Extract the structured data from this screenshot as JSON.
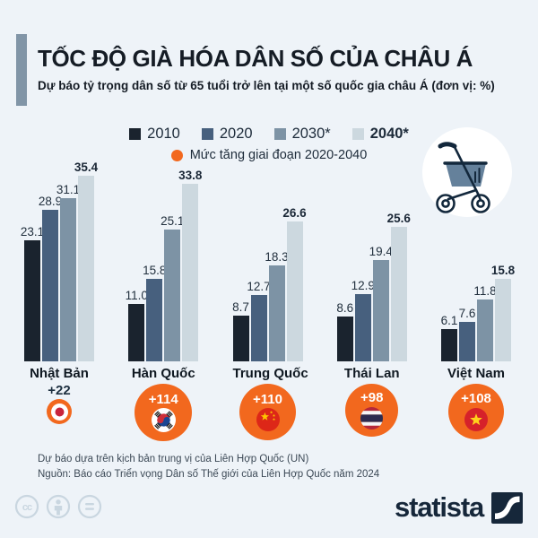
{
  "header": {
    "title": "TỐC ĐỘ GIÀ HÓA DÂN SỐ CỦA CHÂU Á",
    "subtitle": "Dự báo tỷ trọng dân số từ 65 tuổi trở lên tại một số quốc gia châu Á (đơn vị: %)"
  },
  "legend": {
    "increase_label": "Mức tăng giai đoạn 2020-2040"
  },
  "chart_data": {
    "type": "bar",
    "title": "Tốc độ già hóa dân số của châu Á",
    "unit": "%",
    "ylim": [
      0,
      36
    ],
    "grid": false,
    "legend_position": "top",
    "value_labels": true,
    "categories": [
      "Nhật Bản",
      "Hàn Quốc",
      "Trung Quốc",
      "Thái Lan",
      "Việt Nam"
    ],
    "series": [
      {
        "name": "2010",
        "color": "#1a232e",
        "bold": false,
        "values": [
          23.1,
          11.0,
          8.7,
          8.6,
          6.1
        ]
      },
      {
        "name": "2020",
        "color": "#47607e",
        "bold": false,
        "values": [
          28.9,
          15.8,
          12.7,
          12.9,
          7.6
        ]
      },
      {
        "name": "2030*",
        "color": "#7d93a5",
        "bold": false,
        "values": [
          31.1,
          25.1,
          18.3,
          19.4,
          11.8
        ]
      },
      {
        "name": "2040*",
        "color": "#ccd8df",
        "bold": true,
        "values": [
          35.4,
          33.8,
          26.6,
          25.6,
          15.8
        ]
      }
    ],
    "increase_2020_2040": [
      {
        "country": "Nhật Bản",
        "label": "+22",
        "value": 22,
        "flag": "japan"
      },
      {
        "country": "Hàn Quốc",
        "label": "+114",
        "value": 114,
        "flag": "south-korea"
      },
      {
        "country": "Trung Quốc",
        "label": "+110",
        "value": 110,
        "flag": "china"
      },
      {
        "country": "Thái Lan",
        "label": "+98",
        "value": 98,
        "flag": "thailand"
      },
      {
        "country": "Việt Nam",
        "label": "+108",
        "value": 108,
        "flag": "vietnam"
      }
    ]
  },
  "footer": {
    "note": "Dự báo dựa trên kịch bản trung vị của Liên Hợp Quốc (UN)",
    "source": "Nguồn: Báo cáo Triển vọng Dân số Thế giới của Liên Hợp Quốc năm 2024"
  },
  "branding": {
    "logo_text": "statista"
  },
  "icons": {
    "header_icon": "rollator-walker-icon",
    "license_icons": [
      "cc-icon",
      "attribution-person-icon",
      "equals-icon"
    ]
  },
  "colors": {
    "background": "#eef3f8",
    "accent_orange": "#f2681e",
    "dark_navy": "#16273a",
    "header_accent": "#8195a7",
    "license_gray": "#c9d6e0"
  }
}
